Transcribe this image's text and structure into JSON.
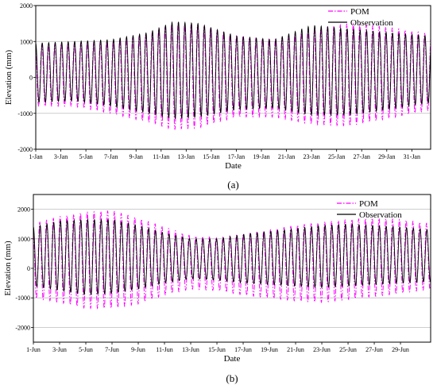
{
  "chart_data": [
    {
      "type": "line",
      "panel_label": "(a)",
      "xlabel": "Date",
      "ylabel": "Elevation (mm)",
      "x_tick_labels": [
        "1-Jan",
        "3-Jan",
        "5-Jan",
        "7-Jan",
        "9-Jan",
        "11-Jan",
        "13-Jan",
        "15-Jan",
        "17-Jan",
        "19-Jan",
        "21-Jan",
        "23-Jan",
        "25-Jan",
        "27-Jan",
        "29-Jan",
        "31-Jan"
      ],
      "x_tick_days": [
        1,
        3,
        5,
        7,
        9,
        11,
        13,
        15,
        17,
        19,
        21,
        23,
        25,
        27,
        29,
        31
      ],
      "xlim_days": [
        1,
        32.5
      ],
      "y_ticks": [
        -2000,
        -1000,
        0,
        1000,
        2000
      ],
      "ylim": [
        -2000,
        2000
      ],
      "grid": "horizontal",
      "legend_position": "top-right",
      "series": [
        {
          "name": "POM",
          "color": "#ff00ff",
          "style": "dash-dot",
          "envelope_days": [
            1,
            4,
            7,
            10,
            12,
            14,
            17,
            20,
            23,
            26,
            29,
            32.5
          ],
          "envelope_high": [
            900,
            950,
            1000,
            1200,
            1500,
            1450,
            1150,
            1050,
            1300,
            1500,
            1400,
            1200
          ],
          "envelope_low": [
            -800,
            -800,
            -1000,
            -1250,
            -1450,
            -1400,
            -1100,
            -1100,
            -1300,
            -1350,
            -1150,
            -900
          ]
        },
        {
          "name": "Observation",
          "color": "#000000",
          "style": "solid",
          "envelope_days": [
            1,
            4,
            7,
            10,
            12,
            14,
            17,
            20,
            23,
            26,
            29,
            32.5
          ],
          "envelope_high": [
            950,
            1000,
            1050,
            1250,
            1550,
            1500,
            1150,
            1050,
            1450,
            1350,
            1250,
            1150
          ],
          "envelope_low": [
            -700,
            -650,
            -800,
            -1000,
            -1150,
            -1100,
            -900,
            -850,
            -1050,
            -1050,
            -900,
            -700
          ]
        }
      ]
    },
    {
      "type": "line",
      "panel_label": "(b)",
      "xlabel": "Date",
      "ylabel": "Elevation (mm)",
      "x_tick_labels": [
        "1-Jun",
        "3-Jun",
        "5-Jun",
        "7-Jun",
        "9-Jun",
        "11-Jun",
        "13-Jun",
        "15-Jun",
        "17-Jun",
        "19-Jun",
        "21-Jun",
        "23-Jun",
        "25-Jun",
        "27-Jun",
        "29-Jun"
      ],
      "x_tick_days": [
        1,
        3,
        5,
        7,
        9,
        11,
        13,
        15,
        17,
        19,
        21,
        23,
        25,
        27,
        29
      ],
      "xlim_days": [
        1,
        31.3
      ],
      "y_ticks": [
        -2000,
        -1000,
        0,
        1000,
        2000
      ],
      "ylim": [
        -2500,
        2500
      ],
      "grid": "horizontal",
      "legend_position": "top-right",
      "series": [
        {
          "name": "POM",
          "color": "#ff00ff",
          "style": "dash-dot",
          "envelope_days": [
            1,
            3,
            5,
            7,
            9,
            11,
            13,
            15,
            17,
            19,
            21,
            23,
            25,
            27,
            29,
            31.3
          ],
          "envelope_high": [
            1500,
            1750,
            1900,
            1950,
            1700,
            1400,
            1100,
            1050,
            1150,
            1300,
            1450,
            1550,
            1650,
            1700,
            1650,
            1500
          ],
          "envelope_low": [
            -1000,
            -1150,
            -1350,
            -1350,
            -1200,
            -900,
            -700,
            -750,
            -900,
            -1000,
            -1100,
            -1150,
            -1050,
            -950,
            -850,
            -700
          ]
        },
        {
          "name": "Observation",
          "color": "#000000",
          "style": "solid",
          "envelope_days": [
            1,
            3,
            5,
            7,
            9,
            11,
            13,
            15,
            17,
            19,
            21,
            23,
            25,
            27,
            29,
            31.3
          ],
          "envelope_high": [
            1400,
            1600,
            1650,
            1650,
            1450,
            1200,
            1000,
            1000,
            1150,
            1250,
            1350,
            1450,
            1500,
            1450,
            1400,
            1300
          ],
          "envelope_low": [
            -600,
            -750,
            -900,
            -850,
            -700,
            -500,
            -350,
            -400,
            -500,
            -550,
            -600,
            -650,
            -600,
            -550,
            -500,
            -450
          ]
        }
      ]
    }
  ]
}
